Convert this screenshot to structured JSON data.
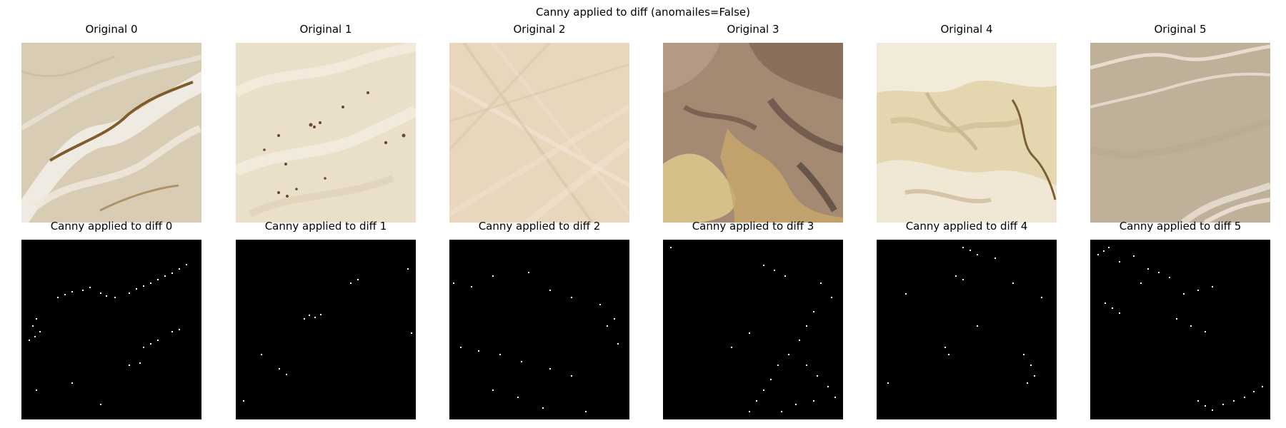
{
  "figure": {
    "suptitle": "Canny applied to diff (anomailes=False)"
  },
  "originals": [
    {
      "title": "Original 0",
      "base": "#d8ccb4",
      "accent": "#f3efe6",
      "dark": "#8a6a3a",
      "texture": "ridges"
    },
    {
      "title": "Original 1",
      "base": "#eadfc9",
      "accent": "#f6efe2",
      "dark": "#6b4a2a",
      "texture": "dunes"
    },
    {
      "title": "Original 2",
      "base": "#e8d6bd",
      "accent": "#f3e7d6",
      "dark": "#b79f82",
      "texture": "streaks"
    },
    {
      "title": "Original 3",
      "base": "#a48a72",
      "accent": "#d6c08a",
      "dark": "#5f4a3e",
      "texture": "rocky"
    },
    {
      "title": "Original 4",
      "base": "#e4d7b0",
      "accent": "#f4efe0",
      "dark": "#a48852",
      "texture": "eroded"
    },
    {
      "title": "Original 5",
      "base": "#bfb09a",
      "accent": "#e6ddcf",
      "dark": "#8f7f6a",
      "texture": "channels"
    }
  ],
  "edges": [
    {
      "title": "Canny applied to diff 0"
    },
    {
      "title": "Canny applied to diff 1"
    },
    {
      "title": "Canny applied to diff 2"
    },
    {
      "title": "Canny applied to diff 3"
    },
    {
      "title": "Canny applied to diff 4"
    },
    {
      "title": "Canny applied to diff 5"
    }
  ]
}
